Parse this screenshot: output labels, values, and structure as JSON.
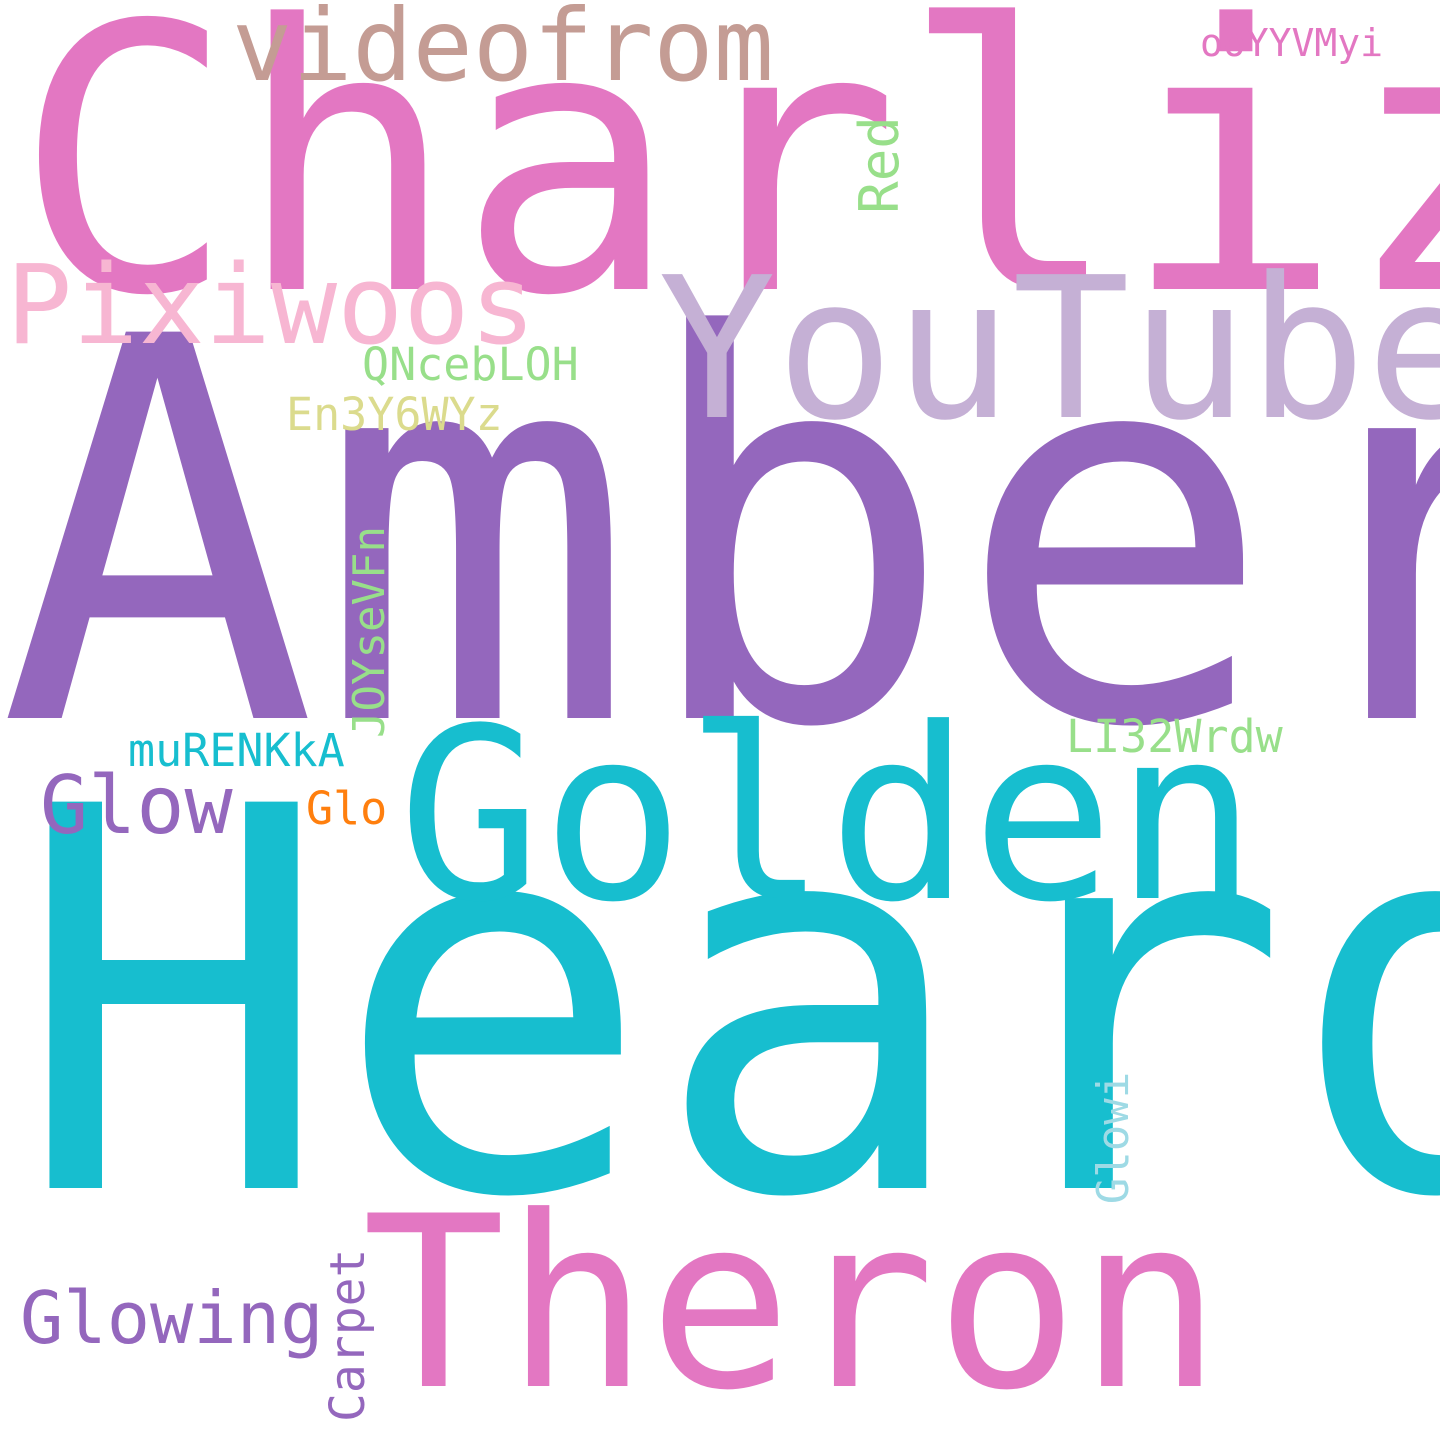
{
  "words": [
    {
      "text": "Charlize",
      "color": "#e377c2",
      "orientation": "horizontal"
    },
    {
      "text": "Amber",
      "color": "#9467bd",
      "orientation": "horizontal"
    },
    {
      "text": "Heard",
      "color": "#17becf",
      "orientation": "horizontal"
    },
    {
      "text": "YouTube",
      "color": "#c5b0d5",
      "orientation": "horizontal"
    },
    {
      "text": "Golden",
      "color": "#17becf",
      "orientation": "horizontal"
    },
    {
      "text": "Theron",
      "color": "#e377c2",
      "orientation": "horizontal"
    },
    {
      "text": "videofrom",
      "color": "#c49c94",
      "orientation": "horizontal"
    },
    {
      "text": "Pixiwoos",
      "color": "#f7b6d2",
      "orientation": "horizontal"
    },
    {
      "text": "Glowing",
      "color": "#9467bd",
      "orientation": "horizontal"
    },
    {
      "text": "Glow",
      "color": "#9467bd",
      "orientation": "horizontal"
    },
    {
      "text": "QNcebLOH",
      "color": "#98df8a",
      "orientation": "horizontal"
    },
    {
      "text": "En3Y6WYz",
      "color": "#dbdb8d",
      "orientation": "horizontal"
    },
    {
      "text": "muRENKkA",
      "color": "#17becf",
      "orientation": "horizontal"
    },
    {
      "text": "LI32Wrdw",
      "color": "#98df8a",
      "orientation": "horizontal"
    },
    {
      "text": "ooYYVMyi",
      "color": "#e377c2",
      "orientation": "horizontal"
    },
    {
      "text": "Glo",
      "color": "#ff7f0e",
      "orientation": "horizontal"
    },
    {
      "text": "Red",
      "color": "#98df8a",
      "orientation": "vertical"
    },
    {
      "text": "JOYseVFn",
      "color": "#98df8a",
      "orientation": "vertical"
    },
    {
      "text": "Glowi",
      "color": "#9edae5",
      "orientation": "vertical"
    },
    {
      "text": "Carpet",
      "color": "#9467bd",
      "orientation": "vertical"
    }
  ]
}
